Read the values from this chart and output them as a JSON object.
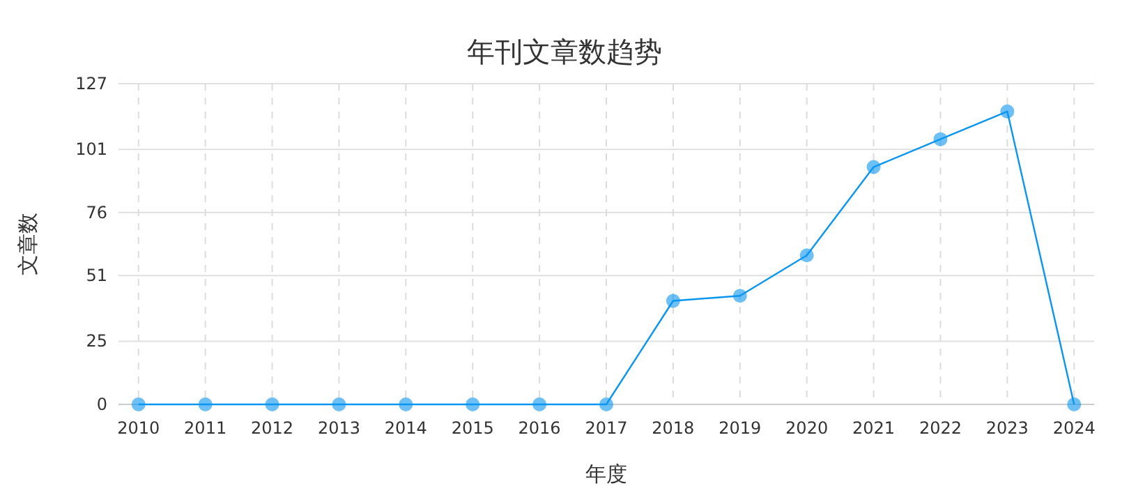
{
  "chart_data": {
    "type": "line",
    "title": "年刊文章数趋势",
    "xlabel": "年度",
    "ylabel": "文章数",
    "categories": [
      "2010",
      "2011",
      "2012",
      "2013",
      "2014",
      "2015",
      "2016",
      "2017",
      "2018",
      "2019",
      "2020",
      "2021",
      "2022",
      "2023",
      "2024"
    ],
    "series": [
      {
        "color": "#0a96f0",
        "values": [
          0,
          0,
          0,
          0,
          0,
          0,
          0,
          0,
          41,
          43,
          59,
          94,
          105,
          116,
          0
        ]
      }
    ],
    "ylim": [
      0,
      127
    ],
    "yticks": [
      0,
      25,
      51,
      76,
      101,
      127
    ],
    "grid": true,
    "marker": "circle",
    "line_style": "solid"
  }
}
